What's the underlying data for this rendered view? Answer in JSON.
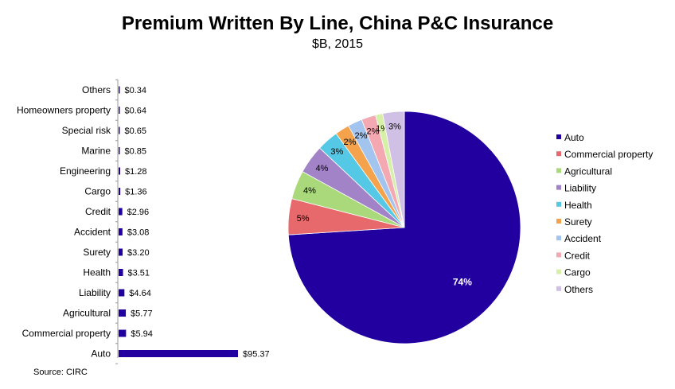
{
  "title": "Premium Written By Line, China P&C Insurance",
  "subtitle": "$B, 2015",
  "source": "Source: CIRC",
  "chart_data": [
    {
      "type": "bar",
      "orientation": "horizontal",
      "categories": [
        "Others",
        "Homeowners property",
        "Special risk",
        "Marine",
        "Engineering",
        "Cargo",
        "Credit",
        "Accident",
        "Surety",
        "Health",
        "Liability",
        "Agricultural",
        "Commercial property",
        "Auto"
      ],
      "values": [
        0.34,
        0.64,
        0.65,
        0.85,
        1.28,
        1.36,
        2.96,
        3.08,
        3.2,
        3.51,
        4.64,
        5.77,
        5.94,
        95.37
      ],
      "data_labels": [
        "$0.34",
        "$0.64",
        "$0.65",
        "$0.85",
        "$1.28",
        "$1.36",
        "$2.96",
        "$3.08",
        "$3.20",
        "$3.51",
        "$4.64",
        "$5.77",
        "$5.94",
        "$95.37"
      ],
      "color": "#2200a0",
      "xlabel": "",
      "ylabel": "",
      "grid": false
    },
    {
      "type": "pie",
      "labels": [
        "Auto",
        "Commercial property",
        "Agricultural",
        "Liability",
        "Health",
        "Surety",
        "Accident",
        "Credit",
        "Cargo",
        "Others"
      ],
      "values": [
        74,
        5,
        4,
        4,
        3,
        2,
        2,
        2,
        1,
        3
      ],
      "data_labels": [
        "74%",
        "5%",
        "4%",
        "4%",
        "3%",
        "2%",
        "2%",
        "2%",
        "1%",
        "3%"
      ],
      "colors": [
        "#2200a0",
        "#e8696c",
        "#a9d97a",
        "#a383c7",
        "#54c8e4",
        "#f5a24c",
        "#a3c4ef",
        "#f4a9b2",
        "#d7f0a8",
        "#d1c0e6"
      ],
      "legend_position": "right"
    }
  ]
}
